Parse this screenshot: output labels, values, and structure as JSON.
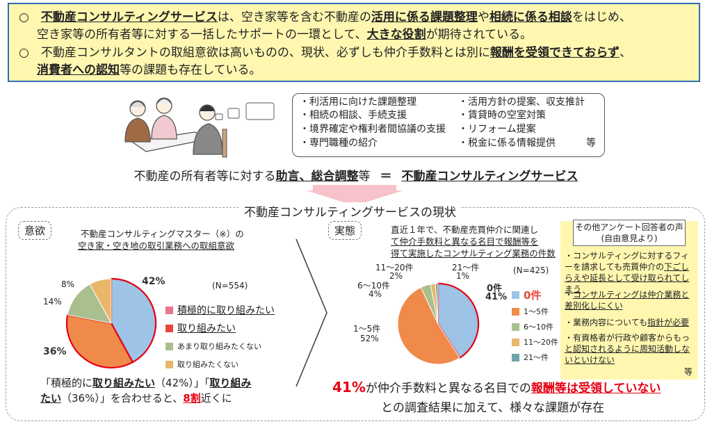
{
  "top": {
    "l1": [
      "○　",
      "不動産コンサルティングサービス",
      "は、空き家等を含む不動産の",
      "活用に係る課題整理",
      "や",
      "相続に係る相談",
      "をはじめ、"
    ],
    "l2": [
      "空き家等の所有者等に対する一括したサポートの一環として、",
      "大きな役割",
      "が期待されている。"
    ],
    "l3": [
      "○　不動産コンサルタントの取組意欲は高いものの、現状、必ずしも仲介手数料とは別に",
      "報酬を受領できておらず",
      "、"
    ],
    "l4": [
      "消費者への認知",
      "等の課題も存在している。"
    ]
  },
  "services": {
    "left": [
      "・利活用に向けた課題整理",
      "・相続の相談、手続支援",
      "・境界確定や権利者間協議の支援",
      "・専門職種の紹介"
    ],
    "right": [
      "・活用方針の提案、収支推計",
      "・賃貸時の空室対策",
      "・リフォーム提案",
      "・税金に係る情報提供"
    ],
    "etc": "等"
  },
  "equation": {
    "pre": "不動産の所有者等に対する",
    "bold": "助言、総合調整",
    "post": "等",
    "eq": "＝",
    "result": "不動産コンサルティングサービス"
  },
  "section_title": "不動産コンサルティングサービスの現状",
  "left_panel": {
    "tag": "意欲",
    "title_1": "不動産コンサルティングマスター（※）の",
    "title_2": "空き家・空き地の取引業務への取組意欲",
    "n": "(N=554)",
    "labels": {
      "p42": "42%",
      "p36": "36%",
      "p14": "14%",
      "p8": "8%"
    },
    "legend": [
      "積極的に取り組みたい",
      "取り組みたい",
      "あまり取り組みたくない",
      "取り組みたくない"
    ],
    "summary_1": [
      "「積極的に",
      "取り組みたい",
      "（42%）」「",
      "取り組み"
    ],
    "summary_2": [
      "たい",
      "（36%）」を合わせると、",
      "8割",
      "近くに"
    ]
  },
  "right_panel": {
    "tag": "実態",
    "title_1": "直近１年で、不動産売買仲介に関連し",
    "title_2": "て仲介手数料と異なる名目で報酬等を",
    "title_3": "得て実施したコンサルティング業務の件数",
    "n": "(N=425)",
    "labels": {
      "z_name": "0件",
      "z_pct": "41%",
      "a_name": "1～5件",
      "a_pct": "52%",
      "b_name": "6～10件",
      "b_pct": "4%",
      "c_name": "11～20件",
      "c_pct": "2%",
      "d_name": "21～件",
      "d_pct": "1%"
    },
    "legend": [
      "0件",
      "1～5件",
      "6～10件",
      "11～20件",
      "21～件"
    ],
    "conclusion_1": [
      "41%",
      "が仲介手数料と異なる名目での",
      "報酬等は受領していない"
    ],
    "conclusion_2": "との調査結果に加えて、様々な課題が存在"
  },
  "voices": {
    "title_1": "その他アンケート回答者の声",
    "title_2": "(自由意見より)",
    "items": [
      [
        "・コンサルティングに対するフィーを請求しても売買仲介の",
        "下ごしらえや延長として受け取られてしまう"
      ],
      [
        "・",
        "コンサルティングは仲介業務と差別化しにくい"
      ],
      [
        "・業務内容についても",
        "指針が必要"
      ],
      [
        "・有資格者が行政や顧客からもっ",
        "と認知されるように周知活動しないといけない"
      ]
    ],
    "etc": "等"
  },
  "chart_data": [
    {
      "type": "pie",
      "title": "不動産コンサルティングマスター（※）の空き家・空き地の取引業務への取組意欲",
      "n": "(N=554)",
      "categories": [
        "積極的に取り組みたい",
        "取り組みたい",
        "あまり取り組みたくない",
        "取り組みたくない"
      ],
      "values": [
        42,
        36,
        14,
        8
      ],
      "colors": [
        "#9dc3e6",
        "#f08a4b",
        "#a9bf8e",
        "#e8b76a"
      ],
      "legend": "right"
    },
    {
      "type": "pie",
      "title": "直近１年で、不動産売買仲介に関連して仲介手数料と異なる名目で報酬等を得て実施したコンサルティング業務の件数",
      "n": "(N=425)",
      "categories": [
        "0件",
        "1～5件",
        "6～10件",
        "11～20件",
        "21～件"
      ],
      "values": [
        41,
        52,
        4,
        2,
        1
      ],
      "colors": [
        "#9dc3e6",
        "#f08a4b",
        "#a9bf8e",
        "#e8b76a",
        "#6fa3a8"
      ],
      "legend": "right"
    }
  ],
  "colors": {
    "accent_red": "#e60012",
    "highlight_yellow": "#fff7b0",
    "frame_blue": "#2e6fb0"
  }
}
